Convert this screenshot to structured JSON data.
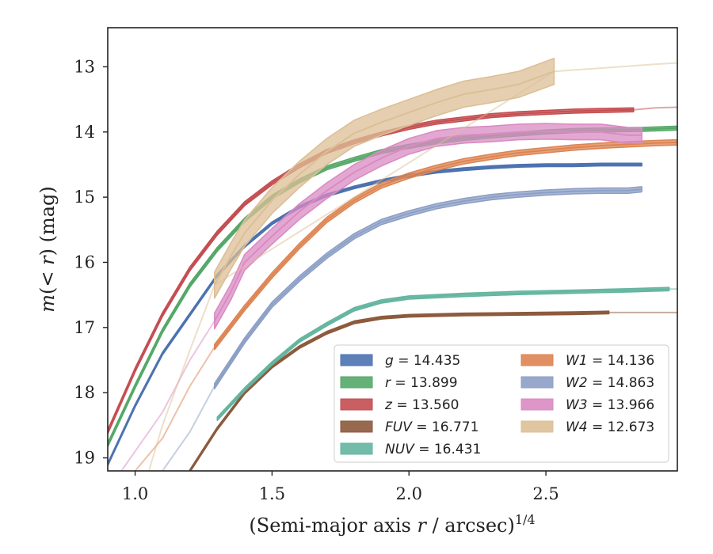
{
  "chart_data": {
    "type": "line",
    "xlabel": "(Semi-major axis r / arcsec)^1/4",
    "ylabel": "m(<r) (mag)",
    "xlim": [
      0.9,
      2.98
    ],
    "ylim": [
      19.2,
      12.4
    ],
    "y_inverted": true,
    "x_ticks": [
      1.0,
      1.5,
      2.0,
      2.5
    ],
    "x_tick_labels": [
      "1.0",
      "1.5",
      "2.0",
      "2.5"
    ],
    "y_ticks": [
      13,
      14,
      15,
      16,
      17,
      18,
      19
    ],
    "y_tick_labels": [
      "13",
      "14",
      "15",
      "16",
      "17",
      "18",
      "19"
    ],
    "grid": false,
    "legend": {
      "placement": "lower-right",
      "columns": 2,
      "entries": [
        {
          "band": "g",
          "value": "14.435"
        },
        {
          "band": "r",
          "value": "13.899"
        },
        {
          "band": "z",
          "value": "13.560"
        },
        {
          "band": "FUV",
          "value": "16.771"
        },
        {
          "band": "NUV",
          "value": "16.431"
        },
        {
          "band": "W1",
          "value": "14.136"
        },
        {
          "band": "W2",
          "value": "14.863"
        },
        {
          "band": "W3",
          "value": "13.966"
        },
        {
          "band": "W4",
          "value": "12.673"
        }
      ]
    },
    "series": [
      {
        "name": "g",
        "color": "#4c72b0",
        "band_width": 0.02,
        "measured": [
          [
            0.9,
            19.1
          ],
          [
            1.0,
            18.2
          ],
          [
            1.1,
            17.4
          ],
          [
            1.2,
            16.8
          ],
          [
            1.3,
            16.2
          ],
          [
            1.4,
            15.75
          ],
          [
            1.5,
            15.4
          ],
          [
            1.6,
            15.15
          ],
          [
            1.7,
            14.97
          ],
          [
            1.8,
            14.85
          ],
          [
            1.9,
            14.75
          ],
          [
            2.0,
            14.67
          ],
          [
            2.1,
            14.61
          ],
          [
            2.2,
            14.57
          ],
          [
            2.3,
            14.54
          ],
          [
            2.4,
            14.52
          ],
          [
            2.5,
            14.51
          ],
          [
            2.6,
            14.51
          ],
          [
            2.7,
            14.5
          ],
          [
            2.85,
            14.5
          ]
        ],
        "model": []
      },
      {
        "name": "r",
        "color": "#55a868",
        "band_width": 0.03,
        "measured": [
          [
            0.9,
            18.8
          ],
          [
            1.0,
            17.9
          ],
          [
            1.1,
            17.05
          ],
          [
            1.2,
            16.35
          ],
          [
            1.3,
            15.8
          ],
          [
            1.4,
            15.35
          ],
          [
            1.5,
            15.0
          ],
          [
            1.6,
            14.75
          ],
          [
            1.7,
            14.55
          ],
          [
            1.8,
            14.42
          ],
          [
            1.9,
            14.3
          ],
          [
            2.0,
            14.22
          ],
          [
            2.1,
            14.15
          ],
          [
            2.2,
            14.1
          ],
          [
            2.3,
            14.06
          ],
          [
            2.4,
            14.03
          ],
          [
            2.5,
            14.0
          ],
          [
            2.6,
            13.98
          ],
          [
            2.7,
            13.97
          ],
          [
            2.85,
            13.96
          ],
          [
            2.98,
            13.94
          ]
        ],
        "model": []
      },
      {
        "name": "z",
        "color": "#c44e52",
        "band_width": 0.03,
        "measured": [
          [
            0.9,
            18.6
          ],
          [
            1.0,
            17.65
          ],
          [
            1.1,
            16.8
          ],
          [
            1.2,
            16.1
          ],
          [
            1.3,
            15.55
          ],
          [
            1.4,
            15.1
          ],
          [
            1.5,
            14.78
          ],
          [
            1.6,
            14.52
          ],
          [
            1.7,
            14.3
          ],
          [
            1.8,
            14.15
          ],
          [
            1.9,
            14.03
          ],
          [
            2.0,
            13.93
          ],
          [
            2.1,
            13.85
          ],
          [
            2.2,
            13.8
          ],
          [
            2.3,
            13.75
          ],
          [
            2.4,
            13.72
          ],
          [
            2.5,
            13.7
          ],
          [
            2.6,
            13.68
          ],
          [
            2.7,
            13.67
          ],
          [
            2.82,
            13.66
          ]
        ],
        "model": [
          [
            2.82,
            13.66
          ],
          [
            2.9,
            13.63
          ],
          [
            2.98,
            13.62
          ]
        ]
      },
      {
        "name": "FUV",
        "color": "#8c5a3c",
        "band_width": 0.02,
        "measured": [
          [
            1.2,
            19.2
          ],
          [
            1.3,
            18.55
          ],
          [
            1.4,
            18.0
          ],
          [
            1.5,
            17.6
          ],
          [
            1.6,
            17.3
          ],
          [
            1.7,
            17.08
          ],
          [
            1.8,
            16.92
          ],
          [
            1.9,
            16.85
          ],
          [
            2.0,
            16.82
          ],
          [
            2.2,
            16.8
          ],
          [
            2.4,
            16.79
          ],
          [
            2.6,
            16.78
          ],
          [
            2.73,
            16.77
          ]
        ],
        "model": [
          [
            2.73,
            16.77
          ],
          [
            2.98,
            16.77
          ]
        ]
      },
      {
        "name": "NUV",
        "color": "#64b5a0",
        "band_width": 0.025,
        "measured": [
          [
            1.3,
            18.4
          ],
          [
            1.4,
            17.95
          ],
          [
            1.5,
            17.55
          ],
          [
            1.6,
            17.2
          ],
          [
            1.7,
            16.95
          ],
          [
            1.8,
            16.72
          ],
          [
            1.9,
            16.6
          ],
          [
            2.0,
            16.54
          ],
          [
            2.2,
            16.5
          ],
          [
            2.4,
            16.47
          ],
          [
            2.6,
            16.45
          ],
          [
            2.8,
            16.43
          ],
          [
            2.95,
            16.41
          ]
        ],
        "model": [
          [
            2.95,
            16.41
          ],
          [
            2.98,
            16.41
          ]
        ]
      },
      {
        "name": "W1",
        "color": "#dd8452",
        "band_width": 0.04,
        "measured": [
          [
            1.29,
            17.3
          ],
          [
            1.4,
            16.7
          ],
          [
            1.5,
            16.2
          ],
          [
            1.6,
            15.75
          ],
          [
            1.7,
            15.35
          ],
          [
            1.8,
            15.05
          ],
          [
            1.9,
            14.82
          ],
          [
            2.0,
            14.67
          ],
          [
            2.1,
            14.55
          ],
          [
            2.2,
            14.45
          ],
          [
            2.3,
            14.38
          ],
          [
            2.4,
            14.32
          ],
          [
            2.5,
            14.28
          ],
          [
            2.6,
            14.24
          ],
          [
            2.7,
            14.21
          ],
          [
            2.8,
            14.19
          ],
          [
            2.9,
            14.17
          ],
          [
            2.98,
            14.16
          ]
        ],
        "model": [
          [
            1.0,
            19.2
          ],
          [
            1.1,
            18.7
          ],
          [
            1.2,
            17.9
          ],
          [
            1.29,
            17.3
          ]
        ]
      },
      {
        "name": "W2",
        "color": "#8c9fc6",
        "band_width": 0.04,
        "measured": [
          [
            1.29,
            17.9
          ],
          [
            1.4,
            17.2
          ],
          [
            1.5,
            16.65
          ],
          [
            1.6,
            16.25
          ],
          [
            1.7,
            15.9
          ],
          [
            1.8,
            15.6
          ],
          [
            1.9,
            15.38
          ],
          [
            2.0,
            15.25
          ],
          [
            2.1,
            15.14
          ],
          [
            2.2,
            15.06
          ],
          [
            2.3,
            15.0
          ],
          [
            2.4,
            14.96
          ],
          [
            2.5,
            14.93
          ],
          [
            2.6,
            14.91
          ],
          [
            2.7,
            14.9
          ],
          [
            2.8,
            14.9
          ],
          [
            2.85,
            14.88
          ]
        ],
        "model": [
          [
            1.1,
            19.2
          ],
          [
            1.2,
            18.6
          ],
          [
            1.29,
            17.9
          ]
        ]
      },
      {
        "name": "W3",
        "color": "#da8bc3",
        "band_width": 0.12,
        "measured": [
          [
            1.29,
            16.9
          ],
          [
            1.35,
            16.45
          ],
          [
            1.4,
            16.0
          ],
          [
            1.5,
            15.6
          ],
          [
            1.6,
            15.22
          ],
          [
            1.7,
            14.9
          ],
          [
            1.8,
            14.62
          ],
          [
            1.9,
            14.4
          ],
          [
            2.0,
            14.22
          ],
          [
            2.1,
            14.1
          ],
          [
            2.2,
            14.05
          ],
          [
            2.3,
            14.03
          ],
          [
            2.4,
            14.0
          ],
          [
            2.5,
            13.99
          ],
          [
            2.6,
            14.0
          ],
          [
            2.7,
            14.0
          ],
          [
            2.8,
            14.05
          ],
          [
            2.85,
            14.05
          ]
        ],
        "model": [
          [
            0.95,
            19.2
          ],
          [
            1.1,
            18.3
          ],
          [
            1.2,
            17.5
          ],
          [
            1.29,
            16.9
          ]
        ]
      },
      {
        "name": "W4",
        "color": "#dcbf96",
        "band_width": 0.2,
        "measured": [
          [
            1.29,
            16.35
          ],
          [
            1.35,
            15.9
          ],
          [
            1.4,
            15.55
          ],
          [
            1.5,
            15.05
          ],
          [
            1.6,
            14.65
          ],
          [
            1.7,
            14.3
          ],
          [
            1.8,
            14.02
          ],
          [
            1.9,
            13.85
          ],
          [
            2.0,
            13.7
          ],
          [
            2.1,
            13.55
          ],
          [
            2.2,
            13.42
          ],
          [
            2.3,
            13.35
          ],
          [
            2.4,
            13.27
          ],
          [
            2.53,
            13.07
          ]
        ],
        "model": [
          [
            1.05,
            19.2
          ],
          [
            1.1,
            18.5
          ],
          [
            1.2,
            17.35
          ],
          [
            1.29,
            16.35
          ],
          [
            2.53,
            13.07
          ],
          [
            2.6,
            13.05
          ],
          [
            2.7,
            13.02
          ],
          [
            2.8,
            12.99
          ],
          [
            2.9,
            12.96
          ],
          [
            2.98,
            12.94
          ]
        ]
      }
    ]
  }
}
